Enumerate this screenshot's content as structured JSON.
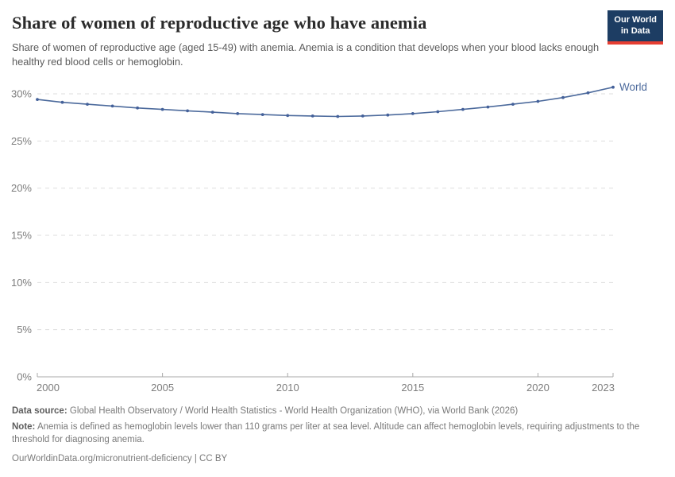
{
  "header": {
    "title": "Share of women of reproductive age who have anemia",
    "subtitle": "Share of women of reproductive age (aged 15-49) with anemia. Anemia is a condition that develops when your blood lacks enough healthy red blood cells or hemoglobin."
  },
  "logo": {
    "line1": "Our World",
    "line2": "in Data",
    "bg_color": "#1d3d63",
    "accent_color": "#e63e32"
  },
  "chart_data": {
    "type": "line",
    "title": "Share of women of reproductive age who have anemia",
    "x": [
      2000,
      2001,
      2002,
      2003,
      2004,
      2005,
      2006,
      2007,
      2008,
      2009,
      2010,
      2011,
      2012,
      2013,
      2014,
      2015,
      2016,
      2017,
      2018,
      2019,
      2020,
      2021,
      2022,
      2023
    ],
    "series": [
      {
        "name": "World",
        "values": [
          29.4,
          29.1,
          28.9,
          28.7,
          28.5,
          28.35,
          28.2,
          28.05,
          27.9,
          27.8,
          27.7,
          27.65,
          27.6,
          27.65,
          27.75,
          27.9,
          28.1,
          28.35,
          28.6,
          28.9,
          29.2,
          29.6,
          30.1,
          30.7
        ]
      }
    ],
    "end_label": "World",
    "xlabel": "",
    "ylabel": "",
    "ylim": [
      0,
      30
    ],
    "yticks": [
      0,
      5,
      10,
      15,
      20,
      25,
      30
    ],
    "ytick_suffix": "%",
    "xticks": [
      2000,
      2005,
      2010,
      2015,
      2020,
      2023
    ],
    "grid": "horizontal-dashed",
    "legend_position": "end-of-line",
    "line_color": "#4C6A9C",
    "dot_color": "#44619a",
    "grid_color": "#dedede",
    "axis_color": "#a8a8a8",
    "tick_label_color": "#7d7d7d"
  },
  "footer": {
    "source_label": "Data source:",
    "source_text": "Global Health Observatory / World Health Statistics - World Health Organization (WHO), via World Bank (2026)",
    "note_label": "Note:",
    "note_text": "Anemia is defined as hemoglobin levels lower than 110 grams per liter at sea level. Altitude can affect hemoglobin levels, requiring adjustments to the threshold for diagnosing anemia.",
    "credit": "OurWorldinData.org/micronutrient-deficiency | CC BY"
  }
}
